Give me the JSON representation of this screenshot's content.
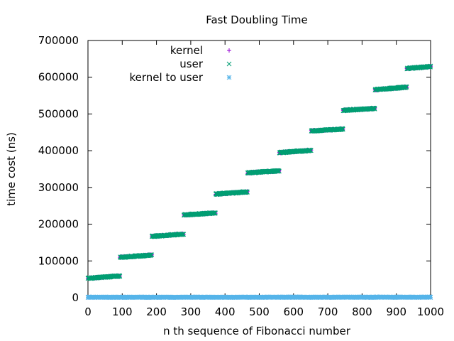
{
  "chart_data": {
    "type": "scatter",
    "title": "Fast Doubling Time",
    "xlabel": "n th sequence of Fibonacci number",
    "ylabel": "time cost (ns)",
    "xlim": [
      0,
      1000
    ],
    "ylim": [
      0,
      700000
    ],
    "xticks": [
      0,
      100,
      200,
      300,
      400,
      500,
      600,
      700,
      800,
      900,
      1000
    ],
    "yticks": [
      0,
      100000,
      200000,
      300000,
      400000,
      500000,
      600000,
      700000
    ],
    "xtick_labels": [
      "0",
      "100",
      "200",
      "300",
      "400",
      "500",
      "600",
      "700",
      "800",
      "900",
      "1000"
    ],
    "ytick_labels": [
      "0",
      "100000",
      "200000",
      "300000",
      "400000",
      "500000",
      "600000",
      "700000"
    ],
    "grid": false,
    "legend_position": "top-left",
    "series": [
      {
        "name": "kernel",
        "marker": "plus",
        "color": "#9400d3",
        "segments": [
          {
            "x_start": 0,
            "x_end": 93,
            "y_start": 53000,
            "y_end": 59000
          },
          {
            "x_start": 94,
            "x_end": 186,
            "y_start": 110000,
            "y_end": 116000
          },
          {
            "x_start": 187,
            "x_end": 279,
            "y_start": 167000,
            "y_end": 173000
          },
          {
            "x_start": 280,
            "x_end": 372,
            "y_start": 225000,
            "y_end": 231000
          },
          {
            "x_start": 373,
            "x_end": 465,
            "y_start": 282000,
            "y_end": 288000
          },
          {
            "x_start": 466,
            "x_end": 558,
            "y_start": 340000,
            "y_end": 345000
          },
          {
            "x_start": 559,
            "x_end": 651,
            "y_start": 395000,
            "y_end": 401000
          },
          {
            "x_start": 652,
            "x_end": 744,
            "y_start": 454000,
            "y_end": 459000
          },
          {
            "x_start": 745,
            "x_end": 837,
            "y_start": 510000,
            "y_end": 515000
          },
          {
            "x_start": 838,
            "x_end": 930,
            "y_start": 566000,
            "y_end": 573000
          },
          {
            "x_start": 931,
            "x_end": 1000,
            "y_start": 624000,
            "y_end": 629000
          }
        ]
      },
      {
        "name": "user",
        "marker": "cross",
        "color": "#009e73",
        "segments": [
          {
            "x_start": 0,
            "x_end": 93,
            "y_start": 53000,
            "y_end": 59000
          },
          {
            "x_start": 94,
            "x_end": 186,
            "y_start": 110000,
            "y_end": 116000
          },
          {
            "x_start": 187,
            "x_end": 279,
            "y_start": 167000,
            "y_end": 173000
          },
          {
            "x_start": 280,
            "x_end": 372,
            "y_start": 225000,
            "y_end": 231000
          },
          {
            "x_start": 373,
            "x_end": 465,
            "y_start": 282000,
            "y_end": 288000
          },
          {
            "x_start": 466,
            "x_end": 558,
            "y_start": 340000,
            "y_end": 345000
          },
          {
            "x_start": 559,
            "x_end": 651,
            "y_start": 395000,
            "y_end": 401000
          },
          {
            "x_start": 652,
            "x_end": 744,
            "y_start": 454000,
            "y_end": 459000
          },
          {
            "x_start": 745,
            "x_end": 837,
            "y_start": 510000,
            "y_end": 515000
          },
          {
            "x_start": 838,
            "x_end": 930,
            "y_start": 566000,
            "y_end": 573000
          },
          {
            "x_start": 931,
            "x_end": 1000,
            "y_start": 624000,
            "y_end": 629000
          }
        ]
      },
      {
        "name": "kernel to user",
        "marker": "star",
        "color": "#56b4e9",
        "segments": [
          {
            "x_start": 0,
            "x_end": 1000,
            "y_start": 500,
            "y_end": 700
          }
        ]
      }
    ]
  }
}
